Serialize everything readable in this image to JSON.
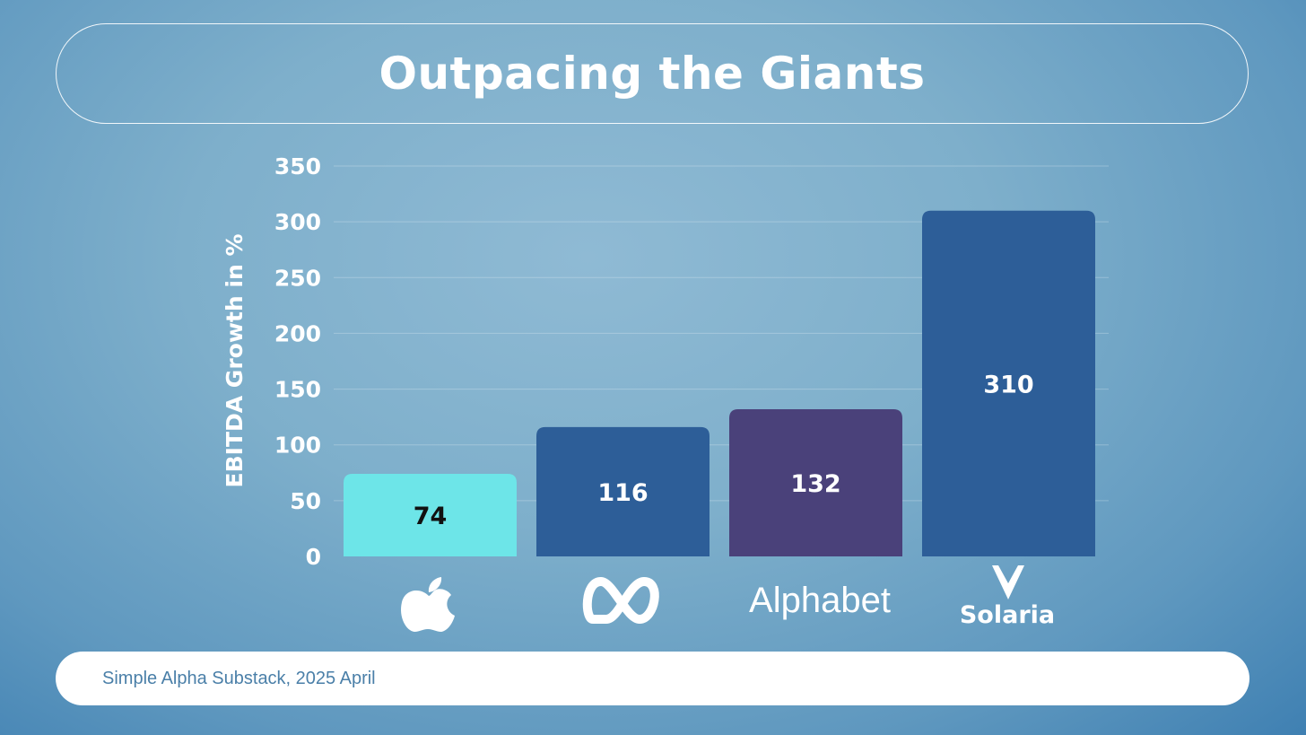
{
  "header": {
    "title": "Outpacing the Giants"
  },
  "footer": {
    "source": "Simple Alpha Substack, 2025 April"
  },
  "chart_data": {
    "type": "bar",
    "title": "Outpacing the Giants",
    "xlabel": "",
    "ylabel": "EBITDA Growth in %",
    "ylim": [
      0,
      350
    ],
    "yticks": [
      0,
      50,
      100,
      150,
      200,
      250,
      300,
      350
    ],
    "grid": true,
    "categories": [
      "Apple",
      "Meta",
      "Alphabet",
      "Solaria"
    ],
    "category_labels": [
      "",
      "",
      "Alphabet",
      "Solaria"
    ],
    "category_icons": [
      "apple-logo-icon",
      "meta-logo-icon",
      "alphabet-logo",
      "solaria-logo"
    ],
    "values": [
      74,
      116,
      132,
      310
    ],
    "colors": [
      "#6de5e8",
      "#2d5e98",
      "#4a417a",
      "#2d5e98"
    ],
    "value_label_colors": [
      "#111111",
      "#ffffff",
      "#ffffff",
      "#ffffff"
    ]
  }
}
